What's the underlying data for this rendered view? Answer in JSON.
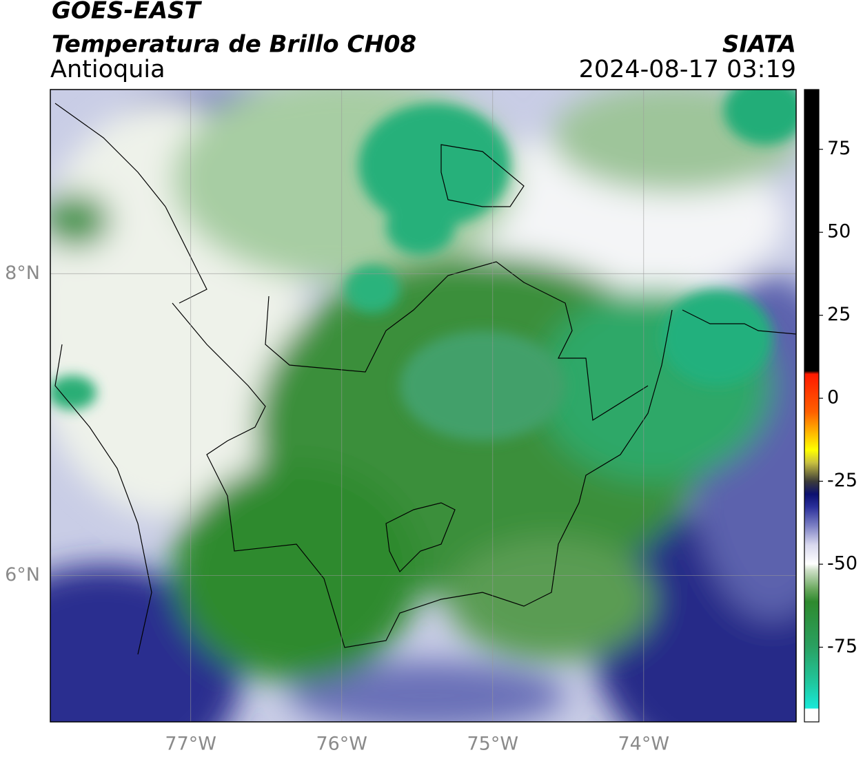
{
  "header": {
    "title": "GOES-EAST",
    "subtitle": "Temperatura de Brillo CH08",
    "region": "Antioquia",
    "source": "SIATA",
    "timestamp": "2024-08-17 03:19"
  },
  "map": {
    "lon_range": [
      -77.93,
      -72.99
    ],
    "lat_range": [
      5.03,
      9.22
    ],
    "lon_ticks": [
      {
        "value": -77,
        "label": "77°W"
      },
      {
        "value": -76,
        "label": "76°W"
      },
      {
        "value": -75,
        "label": "75°W"
      },
      {
        "value": -74,
        "label": "74°W"
      }
    ],
    "lat_ticks": [
      {
        "value": 8,
        "label": "8°N"
      },
      {
        "value": 6,
        "label": "6°N"
      }
    ]
  },
  "colorbar": {
    "range": [
      -97.5,
      93
    ],
    "ticks": [
      75,
      50,
      25,
      0,
      -25,
      -50,
      -75
    ]
  }
}
